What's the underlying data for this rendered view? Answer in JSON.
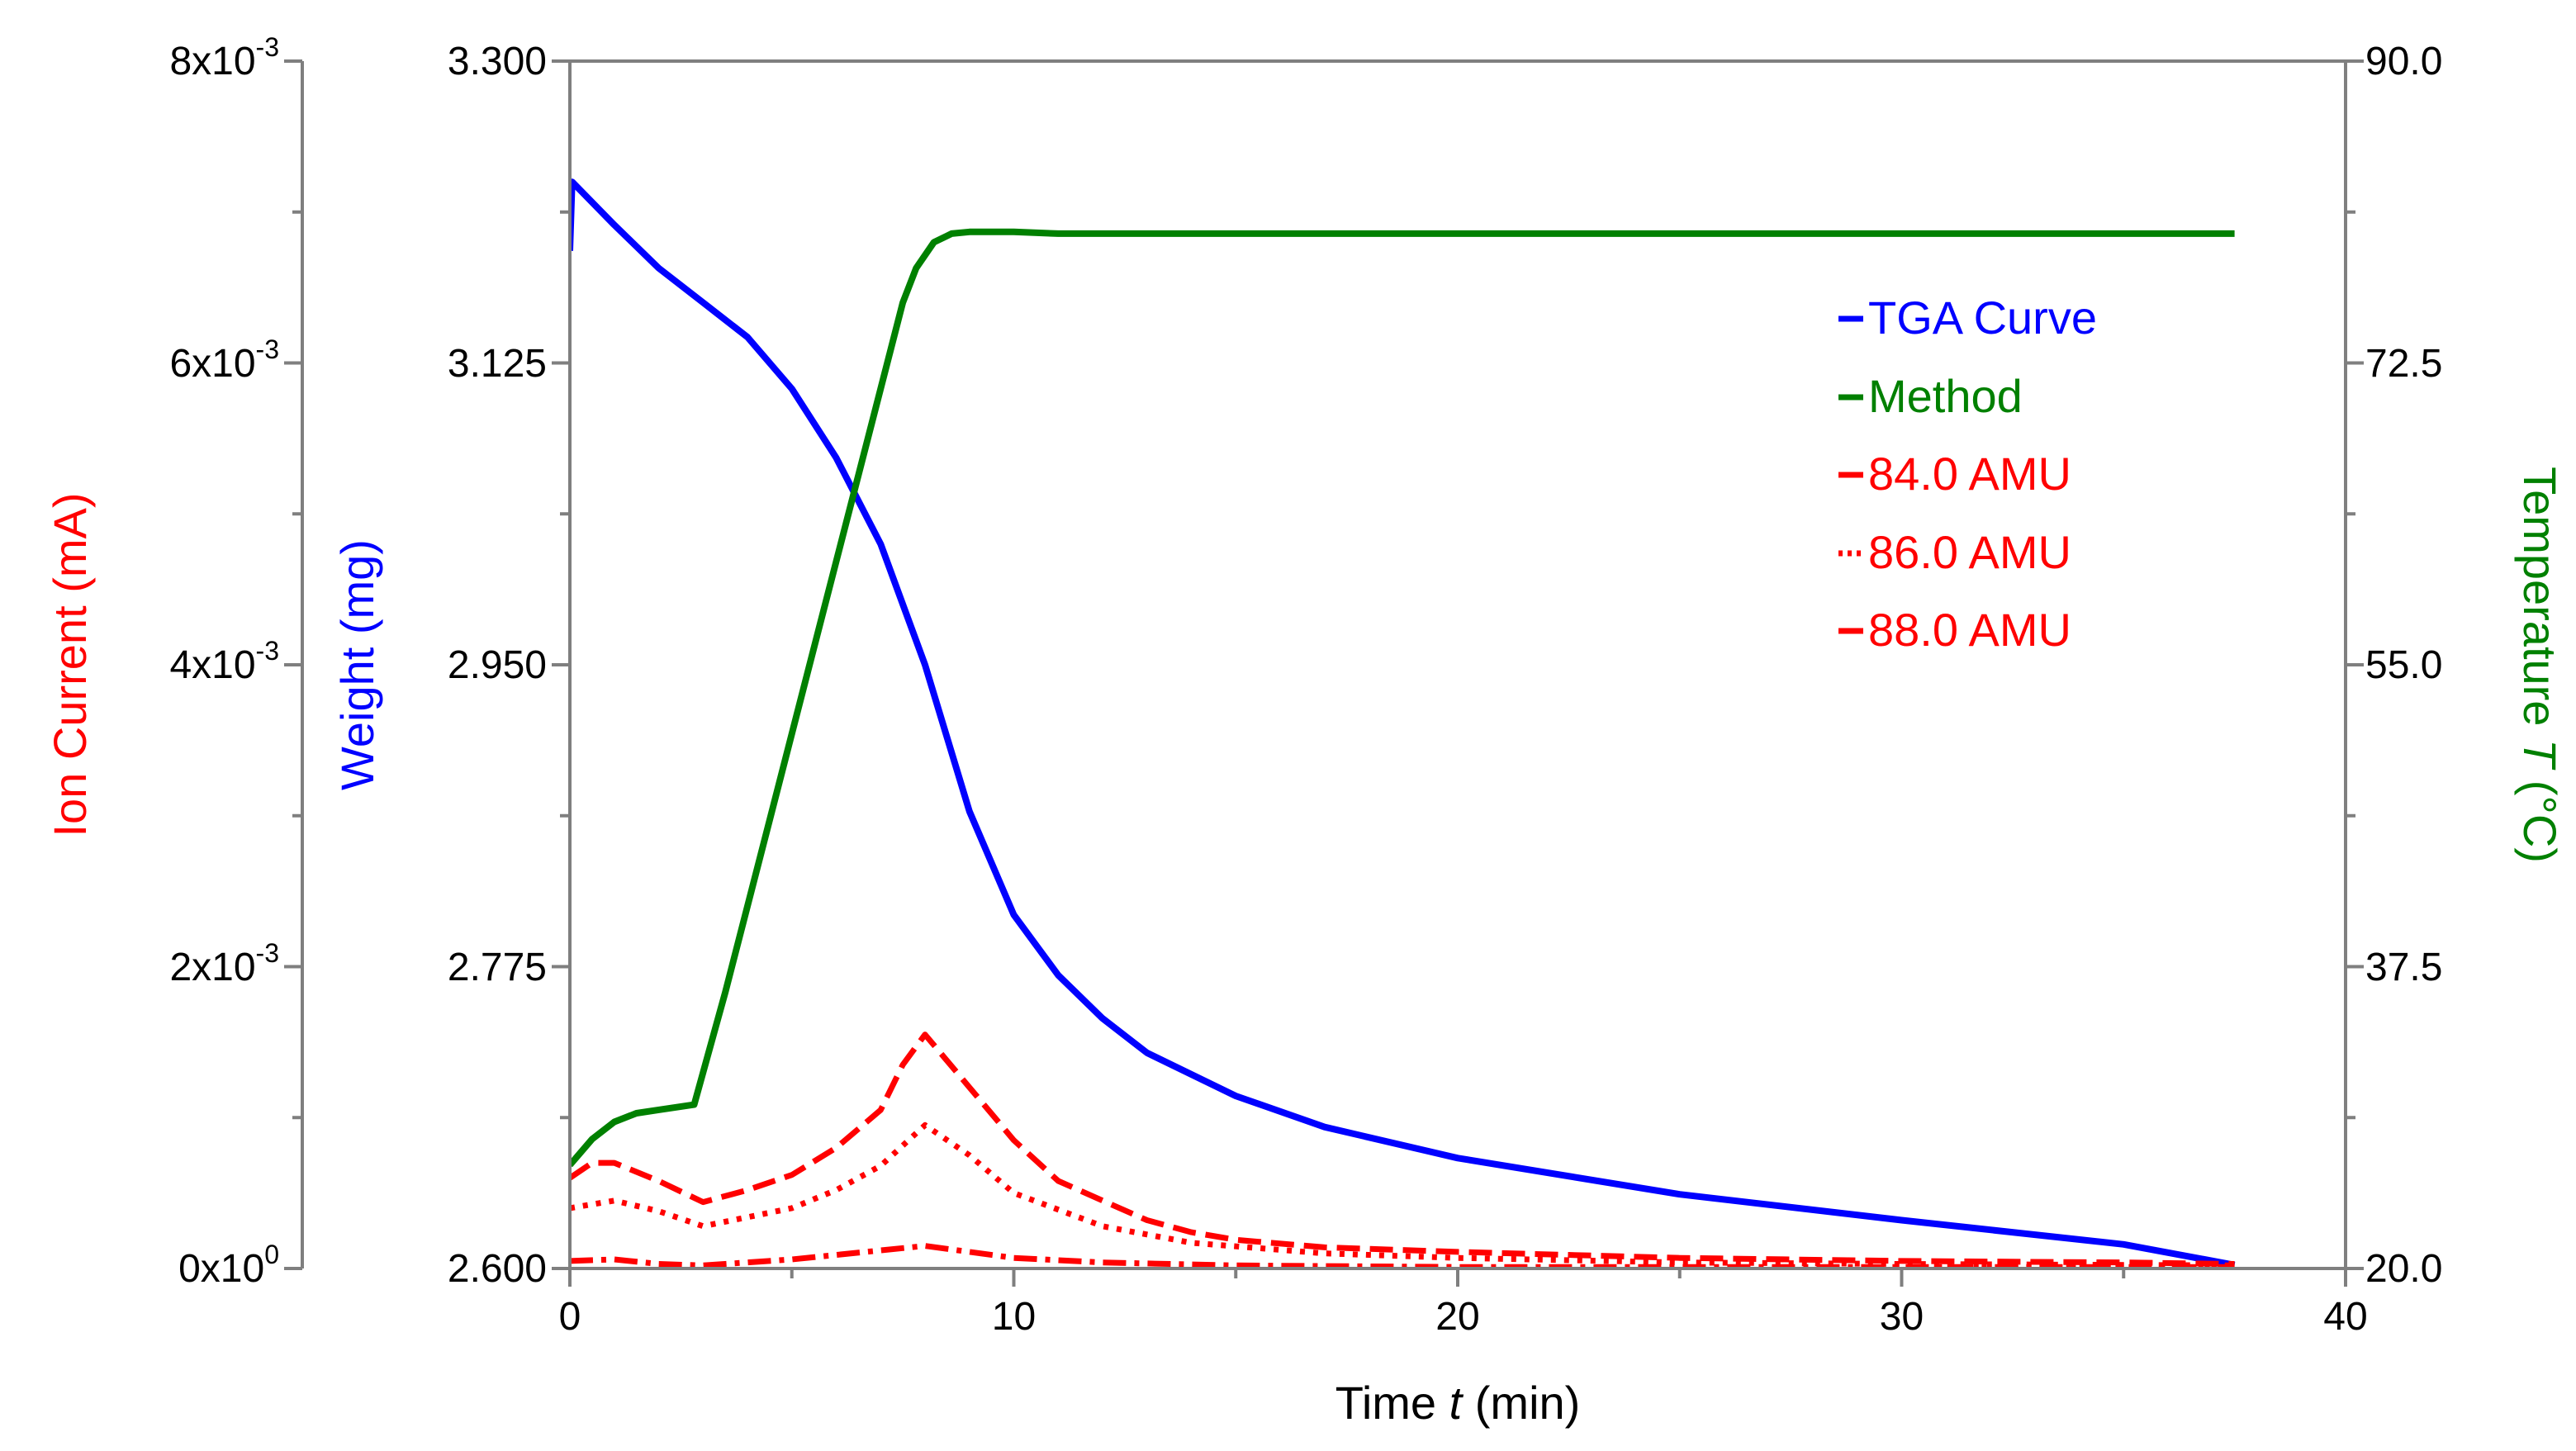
{
  "chart_data": {
    "type": "line",
    "title": "",
    "xlabel": {
      "text": "Time",
      "symbol": "t",
      "unit": "(min)"
    },
    "x_ticks": [
      "0",
      "10",
      "20",
      "30",
      "40"
    ],
    "xlim": [
      0,
      40
    ],
    "axes": {
      "ion": {
        "label": "Ion Current  (mA)",
        "range": [
          0,
          0.008
        ],
        "ticks": [
          {
            "value": 0,
            "mant": "0x10",
            "exp": "0"
          },
          {
            "value": 0.002,
            "mant": "2x10",
            "exp": "-3"
          },
          {
            "value": 0.004,
            "mant": "4x10",
            "exp": "-3"
          },
          {
            "value": 0.006,
            "mant": "6x10",
            "exp": "-3"
          },
          {
            "value": 0.008,
            "mant": "8x10",
            "exp": "-3"
          }
        ],
        "color": "#ff0000"
      },
      "weight": {
        "label": "Weight  (mg)",
        "range": [
          2.6,
          3.3
        ],
        "ticks": [
          "2.600",
          "2.775",
          "2.950",
          "3.125",
          "3.300"
        ],
        "color": "#0000ff"
      },
      "temperature": {
        "label_prefix": "Temperature",
        "symbol": "T",
        "unit": "(°C)",
        "range": [
          20,
          90
        ],
        "ticks": [
          "20.0",
          "37.5",
          "55.0",
          "72.5",
          "90.0"
        ],
        "color": "#008000"
      }
    },
    "legend": {
      "position": "top-right",
      "entries": [
        {
          "label": "TGA Curve",
          "color": "#0000ff",
          "style": "solid"
        },
        {
          "label": "Method",
          "color": "#008000",
          "style": "solid"
        },
        {
          "label": "84.0 AMU",
          "color": "#ff0000",
          "style": "dash"
        },
        {
          "label": "86.0 AMU",
          "color": "#ff0000",
          "style": "dot"
        },
        {
          "label": "88.0 AMU",
          "color": "#ff0000",
          "style": "dashdot"
        }
      ]
    },
    "series": [
      {
        "name": "TGA Curve",
        "axis": "weight",
        "color": "#0000ff",
        "style": "solid",
        "x": [
          0,
          0.05,
          1,
          2,
          3,
          4,
          5,
          6,
          7,
          8,
          9,
          10,
          11,
          12,
          13,
          15,
          17,
          20,
          25,
          30,
          35,
          37.5
        ],
        "y": [
          3.19,
          3.23,
          3.205,
          3.18,
          3.16,
          3.14,
          3.11,
          3.07,
          3.02,
          2.95,
          2.865,
          2.805,
          2.77,
          2.745,
          2.725,
          2.7,
          2.682,
          2.664,
          2.643,
          2.628,
          2.614,
          2.602
        ]
      },
      {
        "name": "Method",
        "axis": "temperature",
        "color": "#008000",
        "style": "solid",
        "x": [
          0,
          0.5,
          1,
          1.5,
          2,
          2.8,
          3.5,
          4.5,
          5.5,
          6.5,
          7.5,
          7.8,
          8.2,
          8.6,
          9,
          10,
          11,
          20,
          30,
          37.5
        ],
        "y": [
          26,
          27.5,
          28.5,
          29,
          29.2,
          29.5,
          36,
          46,
          56,
          66,
          76,
          78,
          79.5,
          80,
          80.1,
          80.1,
          80,
          80,
          80,
          80
        ]
      },
      {
        "name": "84.0 AMU",
        "axis": "ion",
        "color": "#ff0000",
        "style": "dash",
        "x": [
          0,
          0.5,
          1,
          2,
          3,
          4,
          5,
          6,
          7,
          7.5,
          8,
          9,
          10,
          11,
          12,
          13,
          14,
          15,
          17,
          20,
          25,
          30,
          35,
          37.5
        ],
        "y": [
          0.0006,
          0.0007,
          0.0007,
          0.00058,
          0.00044,
          0.00052,
          0.00062,
          0.0008,
          0.00105,
          0.00135,
          0.00155,
          0.0012,
          0.00085,
          0.00058,
          0.00045,
          0.00032,
          0.00024,
          0.00019,
          0.00014,
          0.00011,
          7e-05,
          5e-05,
          4e-05,
          3e-05
        ]
      },
      {
        "name": "86.0 AMU",
        "axis": "ion",
        "color": "#ff0000",
        "style": "dot",
        "x": [
          0,
          1,
          2,
          3,
          4,
          5,
          6,
          7,
          8,
          9,
          10,
          12,
          14,
          17,
          20,
          25,
          30,
          37.5
        ],
        "y": [
          0.0004,
          0.00045,
          0.00038,
          0.00028,
          0.00034,
          0.0004,
          0.00052,
          0.00068,
          0.00095,
          0.00075,
          0.0005,
          0.00028,
          0.00017,
          0.0001,
          7e-05,
          4e-05,
          3e-05,
          2e-05
        ]
      },
      {
        "name": "88.0 AMU",
        "axis": "ion",
        "color": "#ff0000",
        "style": "dashdot",
        "x": [
          0,
          1,
          2,
          3,
          5,
          7,
          8,
          9,
          10,
          12,
          15,
          20,
          30,
          37.5
        ],
        "y": [
          5e-05,
          6e-05,
          3e-05,
          2e-05,
          6e-05,
          0.00012,
          0.00015,
          0.00011,
          7e-05,
          4e-05,
          2e-05,
          1e-05,
          1e-05,
          1e-05
        ]
      }
    ]
  }
}
